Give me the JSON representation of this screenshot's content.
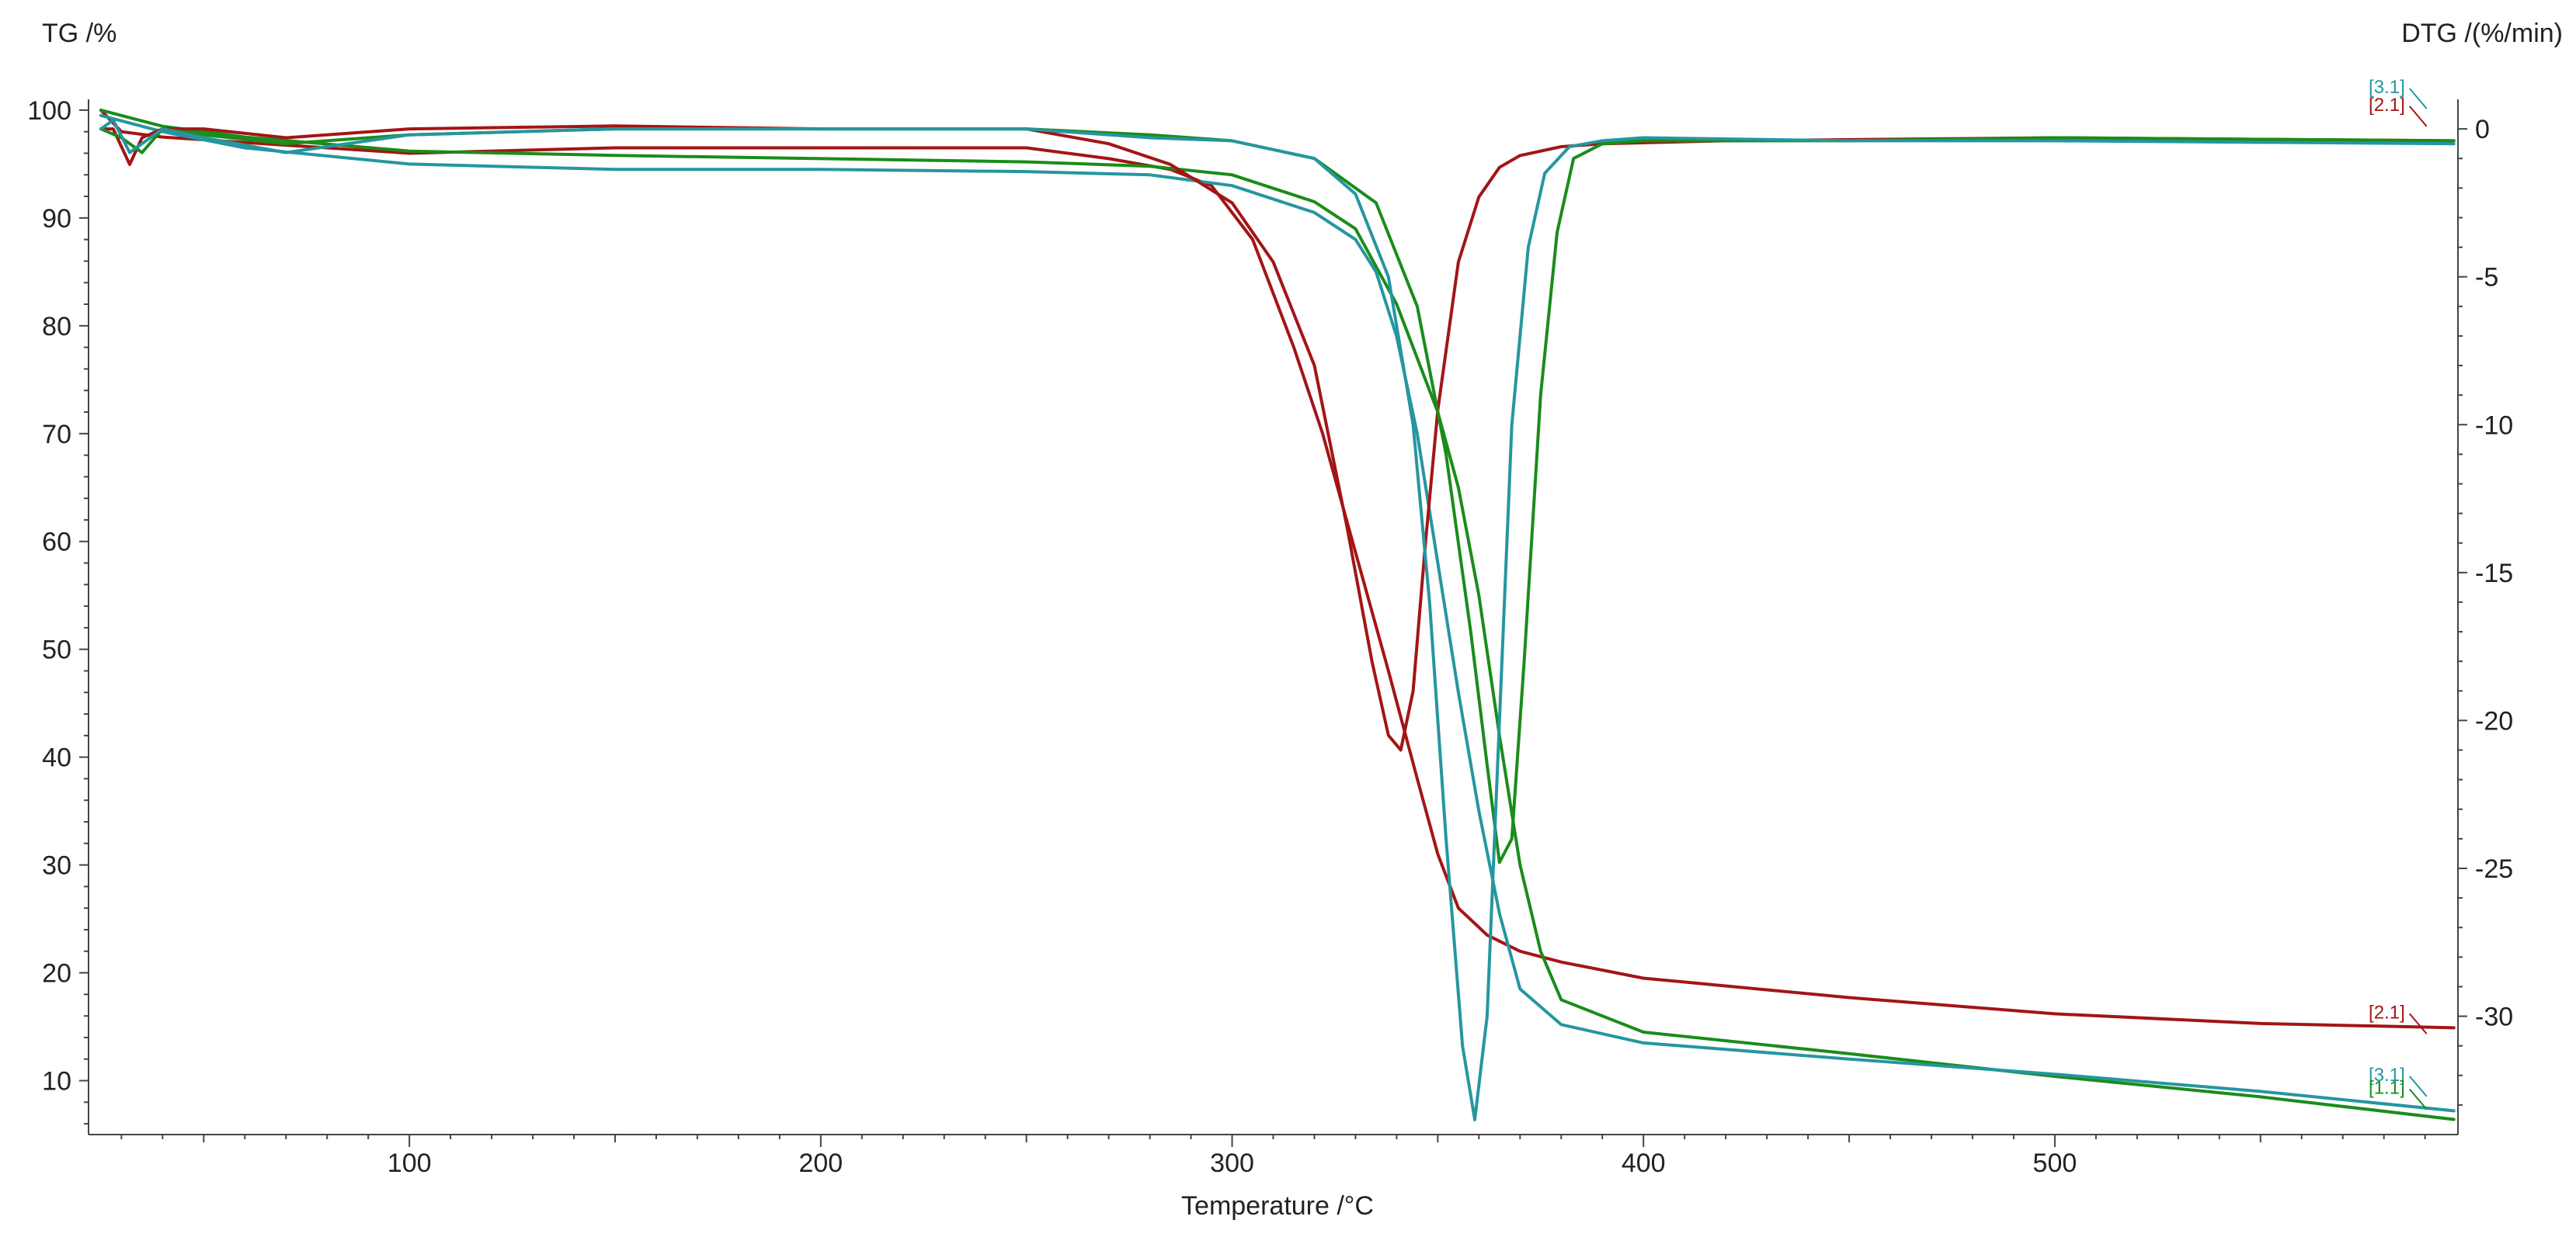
{
  "chart_data": {
    "type": "line",
    "title": "",
    "xlabel": "Temperature /°C",
    "ylabel_left": "TG /%",
    "ylabel_right": "DTG /(%/min)",
    "xlim": [
      22,
      598
    ],
    "ylim_left": [
      5,
      101
    ],
    "ylim_right": [
      -34,
      1
    ],
    "x_ticks": [
      100,
      200,
      300,
      400,
      500
    ],
    "y_ticks_left": [
      10,
      20,
      30,
      40,
      50,
      60,
      70,
      80,
      90,
      100
    ],
    "y_ticks_right": [
      0,
      -5,
      -10,
      -15,
      -20,
      -25,
      -30
    ],
    "grid": false,
    "colors": {
      "red": "#a31515",
      "green": "#1a8c1a",
      "teal": "#2596a0"
    },
    "end_labels": [
      {
        "text": "[2.1]",
        "color": "#a31515",
        "axis": "left",
        "x": 587,
        "y": 15.2
      },
      {
        "text": "[3.1]",
        "color": "#2596a0",
        "axis": "left",
        "x": 587,
        "y": 9.4
      },
      {
        "text": "[1.1]",
        "color": "#1a8c1a",
        "axis": "left",
        "x": 587,
        "y": 8.2
      },
      {
        "text": "[3.1]",
        "color": "#2596a0",
        "axis": "right",
        "x": 587,
        "y": 1.0
      },
      {
        "text": "[2.1]",
        "color": "#a31515",
        "axis": "right",
        "x": 587,
        "y": 0.4
      }
    ],
    "series": [
      {
        "label": "[2.1]",
        "color": "#a31515",
        "axis": "left",
        "kind": "TG",
        "x": [
          25,
          30,
          40,
          60,
          100,
          150,
          200,
          250,
          270,
          285,
          295,
          305,
          315,
          322,
          330,
          338,
          345,
          350,
          355,
          362,
          370,
          380,
          400,
          450,
          500,
          550,
          597
        ],
        "y": [
          100,
          98,
          97.5,
          97,
          96,
          96.5,
          96.5,
          96.5,
          95.5,
          94.5,
          93,
          88,
          78,
          70,
          59,
          48,
          38,
          31,
          26,
          23.5,
          22,
          21,
          19.5,
          17.7,
          16.2,
          15.3,
          14.9
        ]
      },
      {
        "label": "[1.1]",
        "color": "#1a8c1a",
        "axis": "left",
        "kind": "TG",
        "x": [
          25,
          40,
          60,
          100,
          150,
          200,
          250,
          280,
          300,
          320,
          330,
          340,
          350,
          355,
          360,
          365,
          370,
          375,
          380,
          400,
          450,
          500,
          550,
          597
        ],
        "y": [
          100,
          98.5,
          97.5,
          96.2,
          95.8,
          95.5,
          95.2,
          94.8,
          94,
          91.5,
          89,
          82,
          72,
          65,
          55,
          42,
          30,
          22,
          17.5,
          14.5,
          12.5,
          10.4,
          8.5,
          6.4
        ]
      },
      {
        "label": "[3.1]",
        "color": "#2596a0",
        "axis": "left",
        "kind": "TG",
        "x": [
          25,
          40,
          60,
          100,
          150,
          200,
          250,
          280,
          300,
          320,
          330,
          335,
          340,
          345,
          350,
          355,
          360,
          365,
          370,
          380,
          400,
          450,
          500,
          550,
          597
        ],
        "y": [
          99.5,
          98,
          96.5,
          95,
          94.5,
          94.5,
          94.3,
          94,
          93,
          90.5,
          88,
          85,
          79,
          70,
          58,
          46,
          35,
          25.5,
          18.5,
          15.2,
          13.5,
          12,
          10.6,
          9,
          7.2
        ]
      },
      {
        "label": "[2.1]",
        "color": "#a31515",
        "axis": "right",
        "kind": "DTG",
        "x": [
          25,
          28,
          32,
          35,
          40,
          50,
          70,
          100,
          150,
          200,
          250,
          270,
          285,
          300,
          310,
          320,
          328,
          334,
          338,
          341,
          344,
          347,
          350,
          355,
          360,
          365,
          370,
          380,
          390,
          420,
          500,
          597
        ],
        "y": [
          0,
          0,
          -1.2,
          -0.3,
          0,
          0,
          -0.3,
          0,
          0.1,
          0,
          0,
          -0.5,
          -1.2,
          -2.5,
          -4.5,
          -8,
          -13.5,
          -18,
          -20.5,
          -21,
          -19,
          -14,
          -9.5,
          -4.5,
          -2.3,
          -1.3,
          -0.9,
          -0.6,
          -0.5,
          -0.4,
          -0.3,
          -0.4
        ]
      },
      {
        "label": "[1.1]",
        "color": "#1a8c1a",
        "axis": "right",
        "kind": "DTG",
        "x": [
          25,
          30,
          35,
          40,
          50,
          70,
          100,
          150,
          200,
          250,
          280,
          300,
          320,
          335,
          345,
          352,
          358,
          362,
          365,
          368,
          371,
          375,
          379,
          383,
          390,
          400,
          450,
          500,
          597
        ],
        "y": [
          0,
          -0.3,
          -0.8,
          0,
          -0.2,
          -0.5,
          -0.2,
          0,
          0,
          0,
          -0.2,
          -0.4,
          -1,
          -2.5,
          -6,
          -11,
          -17,
          -21.5,
          -24.8,
          -24,
          -18,
          -9,
          -3.5,
          -1,
          -0.5,
          -0.4,
          -0.4,
          -0.3,
          -0.4
        ]
      },
      {
        "label": "[3.1]",
        "color": "#2596a0",
        "axis": "right",
        "kind": "DTG",
        "x": [
          25,
          28,
          32,
          40,
          50,
          70,
          100,
          150,
          200,
          250,
          280,
          300,
          320,
          330,
          338,
          344,
          348,
          352,
          356,
          359,
          362,
          365,
          368,
          372,
          376,
          382,
          390,
          400,
          450,
          500,
          597
        ],
        "y": [
          0,
          0.3,
          -0.8,
          0,
          -0.3,
          -0.8,
          -0.2,
          0,
          0,
          0,
          -0.3,
          -0.4,
          -1,
          -2.2,
          -5,
          -10,
          -16,
          -24,
          -31,
          -33.5,
          -30,
          -20,
          -10,
          -4,
          -1.5,
          -0.6,
          -0.4,
          -0.3,
          -0.4,
          -0.4,
          -0.5
        ]
      }
    ]
  }
}
